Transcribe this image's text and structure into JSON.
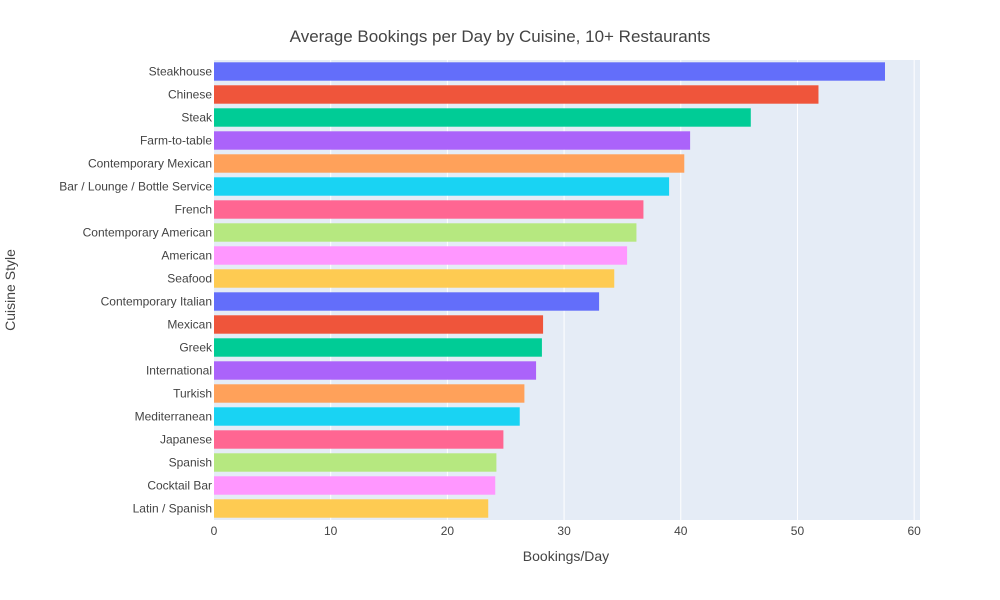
{
  "chart_data": {
    "type": "bar",
    "orientation": "horizontal",
    "title": "Average Bookings per Day by Cuisine, 10+ Restaurants",
    "xlabel": "Bookings/Day",
    "ylabel": "Cuisine Style",
    "xlim": [
      0,
      60.5
    ],
    "xticks": [
      0,
      10,
      20,
      30,
      40,
      50,
      60
    ],
    "xtick_labels": [
      "0",
      "10",
      "20",
      "30",
      "40",
      "50",
      "60"
    ],
    "grid": true,
    "legend": "none",
    "categories": [
      "Steakhouse",
      "Chinese",
      "Steak",
      "Farm-to-table",
      "Contemporary Mexican",
      "Bar / Lounge / Bottle Service",
      "French",
      "Contemporary American",
      "American",
      "Seafood",
      "Contemporary Italian",
      "Mexican",
      "Greek",
      "International",
      "Turkish",
      "Mediterranean",
      "Japanese",
      "Spanish",
      "Cocktail Bar",
      "Latin / Spanish"
    ],
    "values": [
      57.5,
      51.8,
      46.0,
      40.8,
      40.3,
      39.0,
      36.8,
      36.2,
      35.4,
      34.3,
      33.0,
      28.2,
      28.1,
      27.6,
      26.6,
      26.2,
      24.8,
      24.2,
      24.1,
      23.5
    ],
    "colors": [
      "#636efa",
      "#EF553B",
      "#00cc96",
      "#ab63fa",
      "#FFA15A",
      "#19d3f3",
      "#FF6692",
      "#B6E880",
      "#FF97FF",
      "#FECB52"
    ],
    "plot_bg": "#E5ECF6",
    "grid_color": "#ffffff"
  }
}
